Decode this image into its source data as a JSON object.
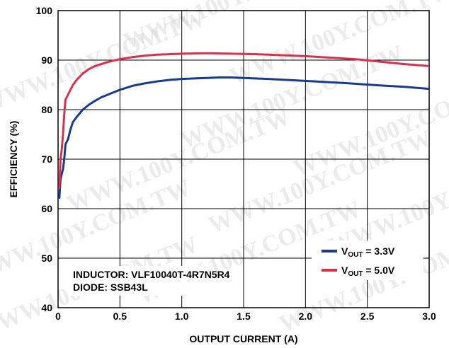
{
  "chart_data": {
    "type": "line",
    "title": "",
    "xlabel": "OUTPUT CURRENT (A)",
    "ylabel": "EFFICIENCY (%)",
    "xlim": [
      0,
      3.0
    ],
    "ylim": [
      40,
      100
    ],
    "x_ticks": [
      "0",
      "0.5",
      "1.0",
      "1.5",
      "2.0",
      "2.5",
      "3.0"
    ],
    "y_ticks": [
      "40",
      "50",
      "60",
      "70",
      "80",
      "90",
      "100"
    ],
    "grid": true,
    "legend_position": "bottom-right",
    "series": [
      {
        "name": "VOUT = 3.3V",
        "legend_main": "V",
        "legend_sub": "OUT",
        "legend_rest": " = 3.3V",
        "color": "#1a3a8a",
        "points": [
          [
            0.01,
            62
          ],
          [
            0.02,
            66
          ],
          [
            0.03,
            67
          ],
          [
            0.04,
            68
          ],
          [
            0.05,
            70
          ],
          [
            0.06,
            73
          ],
          [
            0.08,
            74
          ],
          [
            0.1,
            76
          ],
          [
            0.12,
            77.5
          ],
          [
            0.15,
            78.5
          ],
          [
            0.2,
            80
          ],
          [
            0.25,
            81
          ],
          [
            0.3,
            81.8
          ],
          [
            0.35,
            82.5
          ],
          [
            0.4,
            83
          ],
          [
            0.5,
            84
          ],
          [
            0.6,
            84.8
          ],
          [
            0.7,
            85.3
          ],
          [
            0.8,
            85.7
          ],
          [
            0.9,
            86
          ],
          [
            1.0,
            86.2
          ],
          [
            1.1,
            86.3
          ],
          [
            1.2,
            86.4
          ],
          [
            1.3,
            86.5
          ],
          [
            1.4,
            86.5
          ],
          [
            1.5,
            86.4
          ],
          [
            1.7,
            86.2
          ],
          [
            2.0,
            85.8
          ],
          [
            2.3,
            85.4
          ],
          [
            2.6,
            84.9
          ],
          [
            2.8,
            84.6
          ],
          [
            3.0,
            84.2
          ]
        ]
      },
      {
        "name": "VOUT = 5.0V",
        "legend_main": "V",
        "legend_sub": "OUT",
        "legend_rest": " = 5.0V",
        "color": "#d9304f",
        "points": [
          [
            0.01,
            64
          ],
          [
            0.02,
            70
          ],
          [
            0.03,
            72
          ],
          [
            0.04,
            75
          ],
          [
            0.05,
            79
          ],
          [
            0.06,
            82
          ],
          [
            0.08,
            83
          ],
          [
            0.1,
            84
          ],
          [
            0.12,
            85
          ],
          [
            0.15,
            86
          ],
          [
            0.2,
            87.3
          ],
          [
            0.25,
            88.2
          ],
          [
            0.3,
            88.8
          ],
          [
            0.35,
            89.2
          ],
          [
            0.4,
            89.6
          ],
          [
            0.5,
            90.2
          ],
          [
            0.6,
            90.6
          ],
          [
            0.7,
            90.9
          ],
          [
            0.8,
            91.1
          ],
          [
            0.9,
            91.2
          ],
          [
            1.0,
            91.3
          ],
          [
            1.2,
            91.4
          ],
          [
            1.4,
            91.3
          ],
          [
            1.6,
            91.2
          ],
          [
            1.8,
            91
          ],
          [
            2.0,
            90.8
          ],
          [
            2.2,
            90.5
          ],
          [
            2.4,
            90.2
          ],
          [
            2.6,
            89.7
          ],
          [
            2.8,
            89.2
          ],
          [
            3.0,
            88.8
          ]
        ]
      }
    ],
    "annotations": [
      "INDUCTOR: VLF10040T-4R7N5R4",
      "DIODE: SSB43L"
    ],
    "watermark": "WWW.100Y.COM.TW"
  }
}
